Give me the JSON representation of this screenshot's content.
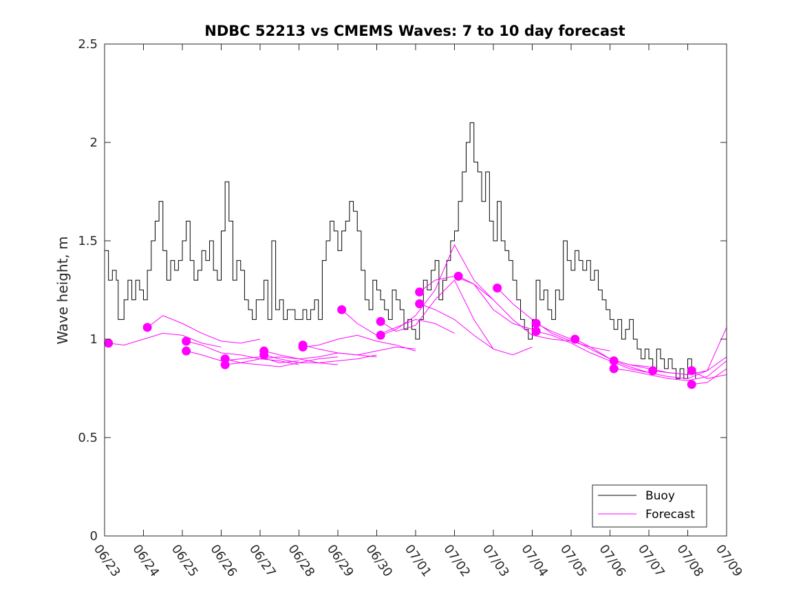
{
  "chart_data": {
    "type": "line",
    "title": "NDBC 52213 vs CMEMS Waves: 7 to 10 day forecast",
    "xlabel": "",
    "ylabel": "Wave height, m",
    "ylim": [
      0,
      2.5
    ],
    "xlim": [
      0,
      16
    ],
    "yticks": [
      "0",
      "0.5",
      "1",
      "1.5",
      "2",
      "2.5"
    ],
    "xticks": [
      "06/23",
      "06/24",
      "06/25",
      "06/26",
      "06/27",
      "06/28",
      "06/29",
      "06/30",
      "07/01",
      "07/02",
      "07/03",
      "07/04",
      "07/05",
      "07/06",
      "07/07",
      "07/08",
      "07/09"
    ],
    "grid": false,
    "legend": {
      "placement": "bottom-right",
      "entries": [
        "Buoy",
        "Forecast"
      ]
    },
    "colors": {
      "buoy": "#000000",
      "forecast": "#ff00ff",
      "axis": "#262626"
    },
    "series": [
      {
        "name": "Buoy",
        "x": [
          0,
          0.1,
          0.2,
          0.3,
          0.35,
          0.5,
          0.6,
          0.7,
          0.8,
          0.9,
          1.0,
          1.1,
          1.2,
          1.3,
          1.4,
          1.5,
          1.6,
          1.7,
          1.8,
          1.9,
          2.0,
          2.1,
          2.2,
          2.3,
          2.4,
          2.5,
          2.6,
          2.7,
          2.8,
          2.9,
          3.0,
          3.1,
          3.2,
          3.3,
          3.4,
          3.5,
          3.6,
          3.7,
          3.8,
          3.9,
          4.0,
          4.1,
          4.2,
          4.3,
          4.4,
          4.5,
          4.6,
          4.7,
          4.8,
          4.9,
          5.0,
          5.1,
          5.2,
          5.3,
          5.4,
          5.5,
          5.6,
          5.7,
          5.8,
          5.9,
          6.0,
          6.1,
          6.2,
          6.3,
          6.4,
          6.5,
          6.6,
          6.7,
          6.8,
          6.9,
          7.0,
          7.1,
          7.2,
          7.3,
          7.4,
          7.5,
          7.6,
          7.7,
          7.8,
          7.9,
          8.0,
          8.1,
          8.2,
          8.3,
          8.4,
          8.5,
          8.6,
          8.7,
          8.8,
          8.9,
          9.0,
          9.1,
          9.2,
          9.3,
          9.4,
          9.5,
          9.6,
          9.7,
          9.8,
          9.9,
          10.0,
          10.1,
          10.2,
          10.3,
          10.4,
          10.5,
          10.6,
          10.7,
          10.8,
          10.9,
          11.0,
          11.1,
          11.2,
          11.3,
          11.4,
          11.5,
          11.6,
          11.7,
          11.8,
          11.9,
          12.0,
          12.1,
          12.2,
          12.3,
          12.4,
          12.5,
          12.6,
          12.7,
          12.8,
          12.9,
          13.0,
          13.1,
          13.2,
          13.3,
          13.4,
          13.5,
          13.6,
          13.7,
          13.8,
          13.9,
          14.0,
          14.1,
          14.2,
          14.3,
          14.4,
          14.5,
          14.6,
          14.7,
          14.8,
          14.9,
          15.0,
          15.1,
          15.2
        ],
        "values": [
          1.45,
          1.3,
          1.35,
          1.3,
          1.1,
          1.2,
          1.3,
          1.2,
          1.3,
          1.25,
          1.2,
          1.35,
          1.5,
          1.6,
          1.7,
          1.45,
          1.3,
          1.4,
          1.35,
          1.4,
          1.5,
          1.6,
          1.4,
          1.3,
          1.35,
          1.45,
          1.4,
          1.5,
          1.35,
          1.3,
          1.55,
          1.8,
          1.6,
          1.3,
          1.4,
          1.35,
          1.2,
          1.15,
          1.1,
          1.2,
          1.2,
          1.3,
          1.1,
          1.5,
          1.15,
          1.2,
          1.1,
          1.15,
          1.15,
          1.1,
          1.1,
          1.15,
          1.1,
          1.15,
          1.2,
          1.1,
          1.4,
          1.5,
          1.6,
          1.55,
          1.45,
          1.55,
          1.6,
          1.7,
          1.65,
          1.55,
          1.35,
          1.2,
          1.15,
          1.3,
          1.25,
          1.2,
          1.15,
          1.1,
          1.25,
          1.2,
          1.15,
          1.05,
          1.1,
          1.05,
          1.0,
          1.1,
          1.3,
          1.25,
          1.35,
          1.4,
          1.2,
          1.3,
          1.4,
          1.5,
          1.55,
          1.7,
          1.85,
          2.0,
          2.1,
          1.9,
          1.85,
          1.7,
          1.85,
          1.6,
          1.5,
          1.7,
          1.5,
          1.45,
          1.4,
          1.3,
          1.2,
          1.1,
          1.05,
          1.0,
          1.1,
          1.3,
          1.2,
          1.25,
          1.15,
          1.1,
          1.25,
          1.2,
          1.5,
          1.4,
          1.35,
          1.45,
          1.4,
          1.35,
          1.4,
          1.3,
          1.35,
          1.25,
          1.2,
          1.15,
          1.1,
          1.05,
          1.1,
          1.0,
          1.05,
          1.1,
          1.0,
          0.95,
          0.9,
          0.95,
          0.9,
          0.85,
          0.95,
          0.9,
          0.85,
          0.9,
          0.85,
          0.8,
          0.85,
          0.8,
          0.9,
          0.85,
          0.8
        ]
      },
      {
        "name": "Forecast",
        "x": [
          0.1,
          0.5,
          1.0,
          1.5,
          2.0,
          2.5,
          3.0
        ],
        "values": [
          0.98,
          0.97,
          1.0,
          1.03,
          1.02,
          0.98,
          0.96
        ]
      },
      {
        "name": "Forecast",
        "x": [
          1.1,
          1.5,
          2.0,
          2.5,
          3.0,
          3.5,
          4.0
        ],
        "values": [
          1.06,
          1.12,
          1.08,
          1.03,
          0.99,
          0.98,
          1.0
        ]
      },
      {
        "name": "Forecast",
        "x": [
          2.1,
          2.5,
          3.0,
          3.5,
          4.0,
          4.5,
          5.0
        ],
        "values": [
          0.99,
          0.97,
          0.93,
          0.92,
          0.9,
          0.89,
          0.87
        ]
      },
      {
        "name": "Forecast",
        "x": [
          2.1,
          2.5,
          3.0,
          3.5,
          4.0,
          4.5,
          5.0
        ],
        "values": [
          0.94,
          0.92,
          0.89,
          0.9,
          0.91,
          0.88,
          0.89
        ]
      },
      {
        "name": "Forecast",
        "x": [
          3.1,
          3.5,
          4.0,
          4.5,
          5.0,
          5.5,
          6.0
        ],
        "values": [
          0.9,
          0.88,
          0.87,
          0.86,
          0.88,
          0.9,
          0.91
        ]
      },
      {
        "name": "Forecast",
        "x": [
          3.1,
          3.5,
          4.0,
          4.5,
          5.0,
          5.5,
          6.0
        ],
        "values": [
          0.87,
          0.88,
          0.9,
          0.91,
          0.9,
          0.88,
          0.87
        ]
      },
      {
        "name": "Forecast",
        "x": [
          4.1,
          4.5,
          5.0,
          5.5,
          6.0,
          6.5,
          7.0
        ],
        "values": [
          0.94,
          0.92,
          0.9,
          0.91,
          0.93,
          0.92,
          0.91
        ]
      },
      {
        "name": "Forecast",
        "x": [
          4.1,
          4.5,
          5.0,
          5.5,
          6.0,
          6.5,
          7.0
        ],
        "values": [
          0.92,
          0.9,
          0.88,
          0.88,
          0.89,
          0.9,
          0.92
        ]
      },
      {
        "name": "Forecast",
        "x": [
          5.1,
          5.5,
          6.0,
          6.5,
          7.0,
          7.5,
          8.0
        ],
        "values": [
          0.97,
          0.95,
          0.93,
          0.92,
          0.94,
          0.96,
          0.95
        ]
      },
      {
        "name": "Forecast",
        "x": [
          5.1,
          5.5,
          6.0,
          6.5,
          7.0,
          7.5,
          8.0
        ],
        "values": [
          0.96,
          0.97,
          1.0,
          1.02,
          0.99,
          0.97,
          0.94
        ]
      },
      {
        "name": "Forecast",
        "x": [
          6.1,
          6.5,
          7.0,
          7.5,
          8.0,
          8.5,
          9.0
        ],
        "values": [
          1.15,
          1.08,
          1.02,
          1.06,
          1.1,
          1.08,
          1.03
        ]
      },
      {
        "name": "Forecast",
        "x": [
          7.1,
          7.5,
          8.0,
          8.5,
          9.0,
          9.5,
          10.0
        ],
        "values": [
          1.09,
          1.04,
          1.07,
          1.2,
          1.3,
          1.1,
          0.95
        ]
      },
      {
        "name": "Forecast",
        "x": [
          7.1,
          7.5,
          8.0,
          8.5,
          9.0,
          9.5,
          10.0
        ],
        "values": [
          1.02,
          1.05,
          1.12,
          1.25,
          1.48,
          1.3,
          1.2
        ]
      },
      {
        "name": "Forecast",
        "x": [
          8.1,
          8.5,
          9.0,
          9.5,
          10.0,
          10.5,
          11.0
        ],
        "values": [
          1.24,
          1.3,
          1.32,
          1.28,
          1.15,
          1.08,
          1.05
        ]
      },
      {
        "name": "Forecast",
        "x": [
          8.1,
          8.5,
          9.0,
          9.5,
          10.0,
          10.5,
          11.0
        ],
        "values": [
          1.18,
          1.15,
          1.1,
          1.02,
          0.95,
          0.92,
          0.96
        ]
      },
      {
        "name": "Forecast",
        "x": [
          9.1,
          9.5,
          10.0,
          10.5,
          11.0,
          11.5,
          12.0
        ],
        "values": [
          1.32,
          1.28,
          1.2,
          1.1,
          1.02,
          1.0,
          0.99
        ]
      },
      {
        "name": "Forecast",
        "x": [
          10.1,
          10.5,
          11.0,
          11.5,
          12.0,
          12.5,
          13.0
        ],
        "values": [
          1.26,
          1.18,
          1.1,
          1.03,
          0.99,
          0.96,
          0.94
        ]
      },
      {
        "name": "Forecast",
        "x": [
          11.1,
          11.5,
          12.0,
          12.5,
          13.0,
          13.5,
          14.0
        ],
        "values": [
          1.08,
          1.04,
          1.0,
          0.95,
          0.9,
          0.87,
          0.86
        ]
      },
      {
        "name": "Forecast",
        "x": [
          11.1,
          11.5,
          12.0,
          12.5,
          13.0,
          13.5,
          14.0
        ],
        "values": [
          1.04,
          1.02,
          0.98,
          0.93,
          0.89,
          0.85,
          0.83
        ]
      },
      {
        "name": "Forecast",
        "x": [
          12.1,
          12.5,
          13.0,
          13.5,
          14.0,
          14.5,
          15.0
        ],
        "values": [
          1.0,
          0.96,
          0.9,
          0.87,
          0.85,
          0.83,
          0.82
        ]
      },
      {
        "name": "Forecast",
        "x": [
          13.1,
          13.5,
          14.0,
          14.5,
          15.0,
          15.5,
          16.0
        ],
        "values": [
          0.89,
          0.86,
          0.83,
          0.81,
          0.8,
          0.84,
          1.06
        ]
      },
      {
        "name": "Forecast",
        "x": [
          13.1,
          13.5,
          14.0,
          14.5,
          15.0,
          15.5,
          16.0
        ],
        "values": [
          0.85,
          0.84,
          0.82,
          0.8,
          0.79,
          0.81,
          0.89
        ]
      },
      {
        "name": "Forecast",
        "x": [
          14.1,
          14.5,
          15.0,
          15.5,
          16.0
        ],
        "values": [
          0.84,
          0.83,
          0.82,
          0.84,
          0.91
        ]
      },
      {
        "name": "Forecast",
        "x": [
          15.1,
          15.5,
          16.0
        ],
        "values": [
          0.84,
          0.8,
          0.82
        ]
      },
      {
        "name": "Forecast",
        "x": [
          15.1,
          15.5,
          16.0
        ],
        "values": [
          0.77,
          0.78,
          0.85
        ]
      }
    ]
  }
}
